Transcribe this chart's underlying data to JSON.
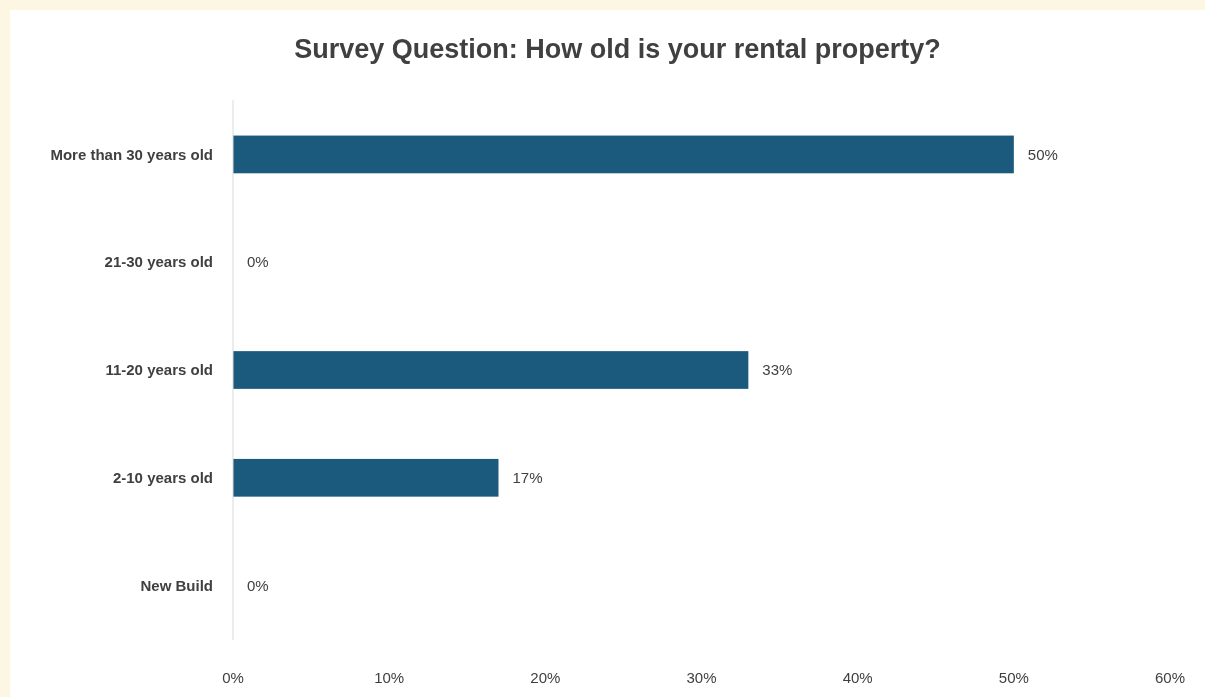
{
  "chart_data": {
    "type": "bar",
    "orientation": "horizontal",
    "title": "Survey Question: How old is your rental property?",
    "categories": [
      "More than 30 years old",
      "21-30 years old",
      "11-20 years old",
      "2-10 years old",
      "New Build"
    ],
    "values": [
      50,
      0,
      33,
      17,
      0
    ],
    "value_labels": [
      "50%",
      "0%",
      "33%",
      "17%",
      "0%"
    ],
    "color": "#1b5a7d",
    "xlim": [
      0,
      60
    ],
    "xticks": [
      {
        "value": 0,
        "label": "0%"
      },
      {
        "value": 10,
        "label": "10%"
      },
      {
        "value": 20,
        "label": "20%"
      },
      {
        "value": 30,
        "label": "30%"
      },
      {
        "value": 40,
        "label": "40%"
      },
      {
        "value": 50,
        "label": "50%"
      },
      {
        "value": 60,
        "label": "60%"
      }
    ],
    "grid": false
  }
}
